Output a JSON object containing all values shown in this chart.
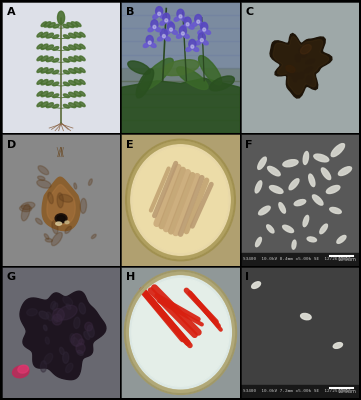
{
  "layout": {
    "rows": 3,
    "cols": 3,
    "figsize": [
      3.61,
      4.0
    ],
    "dpi": 100
  },
  "panels": [
    {
      "label": "A",
      "bg_color": "#d8dce8"
    },
    {
      "label": "B",
      "bg_color": "#7890a8"
    },
    {
      "label": "C",
      "bg_color": "#9eaaaa"
    },
    {
      "label": "D",
      "bg_color": "#888888"
    },
    {
      "label": "E",
      "bg_color": "#b0a888"
    },
    {
      "label": "F",
      "bg_color": "#585858"
    },
    {
      "label": "G",
      "bg_color": "#6a6870"
    },
    {
      "label": "H",
      "bg_color": "#909898"
    },
    {
      "label": "I",
      "bg_color": "#404040"
    }
  ],
  "border_color": "#000000",
  "border_width": 0.5,
  "label_fontsize": 8,
  "label_fontweight": "bold",
  "panel_A": {
    "bg": "#dde0e8",
    "stem_color": "#5a6a38",
    "leaf_color": "#4a7030",
    "root_color": "#886040"
  },
  "panel_B": {
    "bg_top": "#8090a8",
    "bg_bot": "#506040",
    "flower_color": "#6050c8",
    "leaf_color": "#386028"
  },
  "panel_C": {
    "bg": "#9ea8a8",
    "blob_color": "#2a2018"
  },
  "panel_D": {
    "bg": "#888888",
    "root_color": "#8a6030",
    "dark_color": "#2a1808"
  },
  "panel_E": {
    "bg": "#b0a070",
    "dish_rim": "#c8b888",
    "agar_color": "#d8c898",
    "streak_color": "#c0a878"
  },
  "panel_F": {
    "bg": "#585858",
    "rod_color": "#d8d8d8",
    "bar_bg": "#202020"
  },
  "panel_G": {
    "bg": "#686870",
    "blob_color": "#2a2030",
    "pink_color": "#c03060"
  },
  "panel_H": {
    "bg": "#909898",
    "agar_color": "#d8e8e0",
    "streak_color": "#d02010",
    "rim_color": "#c8b888"
  },
  "panel_I": {
    "bg": "#404040",
    "rod_color": "#d8d8d8",
    "bar_bg": "#181818"
  }
}
